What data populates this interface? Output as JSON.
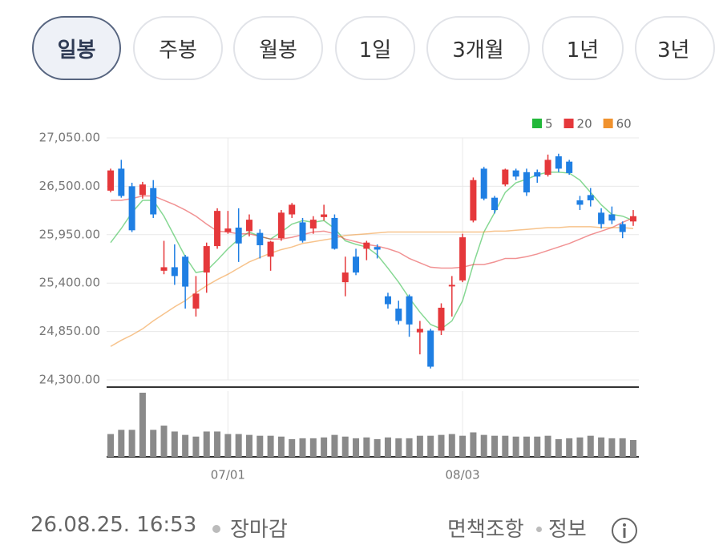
{
  "tabs": [
    "일봉",
    "주봉",
    "월봉",
    "1일",
    "3개월",
    "1년",
    "3년"
  ],
  "chart_data": {
    "type": "candlestick",
    "categories": [
      null,
      null,
      null,
      null,
      null,
      null,
      null,
      null,
      null,
      null,
      null,
      "07/01",
      null,
      null,
      null,
      null,
      null,
      null,
      null,
      null,
      null,
      null,
      null,
      null,
      null,
      null,
      null,
      null,
      null,
      null,
      null,
      null,
      null,
      "08/03",
      null,
      null,
      null,
      null,
      null,
      null,
      null,
      null,
      null,
      null,
      null,
      null,
      null,
      null,
      null,
      null
    ],
    "open": [
      26450,
      26700,
      26500,
      26400,
      26480,
      25540,
      25580,
      25700,
      25110,
      25520,
      25820,
      25980,
      26030,
      25990,
      25970,
      25700,
      25910,
      26180,
      26090,
      26020,
      26150,
      26140,
      25410,
      25700,
      25790,
      25810,
      25250,
      25110,
      25250,
      24840,
      24860,
      24860,
      25370,
      25430,
      26110,
      26700,
      26370,
      26520,
      26680,
      26660,
      26660,
      26630,
      26840,
      26780,
      26340,
      26400,
      26200,
      26180,
      26070,
      26100
    ],
    "high": [
      26700,
      26800,
      26540,
      26550,
      26570,
      25880,
      25840,
      25720,
      25480,
      25860,
      26250,
      26220,
      26250,
      26180,
      26010,
      25880,
      26230,
      26310,
      26140,
      26160,
      26290,
      26180,
      25700,
      25790,
      25880,
      25840,
      25290,
      25200,
      25270,
      24970,
      24880,
      25170,
      25480,
      25960,
      26600,
      26720,
      26390,
      26700,
      26700,
      26700,
      26690,
      26860,
      26870,
      26800,
      26390,
      26480,
      26250,
      26270,
      26100,
      26230
    ],
    "low": [
      26430,
      26370,
      25980,
      26360,
      26140,
      25500,
      25380,
      25110,
      25020,
      25290,
      25790,
      25960,
      25640,
      25930,
      25680,
      25540,
      25880,
      26140,
      25860,
      25960,
      26110,
      25780,
      25250,
      25490,
      25660,
      25680,
      25110,
      24930,
      24790,
      24590,
      24430,
      24810,
      25020,
      25410,
      26090,
      26340,
      26190,
      26500,
      26570,
      26390,
      26540,
      26610,
      26660,
      26630,
      26230,
      26270,
      26020,
      26070,
      25910,
      26050
    ],
    "close": [
      26680,
      26390,
      26000,
      26520,
      26180,
      25580,
      25480,
      25360,
      25280,
      25820,
      26220,
      26020,
      25850,
      26120,
      25830,
      25870,
      26200,
      26290,
      25880,
      26120,
      26180,
      25790,
      25520,
      25520,
      25860,
      25780,
      25160,
      24970,
      24930,
      24880,
      24450,
      25120,
      25380,
      25920,
      26570,
      26360,
      26230,
      26690,
      26610,
      26430,
      26610,
      26800,
      26700,
      26650,
      26290,
      26340,
      26070,
      26110,
      25980,
      26160
    ],
    "up_color": "#e5383b",
    "down_color": "#1f7fe3",
    "series": [
      {
        "name": "5",
        "color": "#22b83a",
        "values": [
          25860,
          26020,
          26200,
          26340,
          26340,
          26160,
          25930,
          25700,
          25520,
          25540,
          25660,
          25790,
          25900,
          25980,
          25930,
          25900,
          25980,
          26070,
          26110,
          26090,
          26110,
          26020,
          25880,
          25840,
          25810,
          25720,
          25570,
          25410,
          25230,
          25070,
          24930,
          24880,
          24970,
          25200,
          25610,
          25980,
          26200,
          26430,
          26540,
          26580,
          26630,
          26660,
          26660,
          26650,
          26570,
          26430,
          26290,
          26180,
          26160,
          26110
        ]
      },
      {
        "name": "20",
        "color": "#e5383b",
        "values": [
          26340,
          26340,
          26360,
          26390,
          26390,
          26340,
          26290,
          26230,
          26160,
          26070,
          25990,
          25980,
          25960,
          25960,
          25930,
          25900,
          25900,
          25920,
          25950,
          25980,
          25990,
          25960,
          25900,
          25870,
          25840,
          25820,
          25790,
          25750,
          25680,
          25630,
          25580,
          25570,
          25570,
          25580,
          25610,
          25610,
          25640,
          25680,
          25680,
          25700,
          25730,
          25770,
          25810,
          25850,
          25900,
          25950,
          25990,
          26030,
          26090,
          26140
        ]
      },
      {
        "name": "60",
        "color": "#f0922e",
        "values": [
          24680,
          24750,
          24810,
          24880,
          24970,
          25050,
          25130,
          25200,
          25290,
          25370,
          25440,
          25500,
          25570,
          25640,
          25690,
          25740,
          25780,
          25810,
          25850,
          25870,
          25890,
          25910,
          25940,
          25950,
          25960,
          25970,
          25980,
          25980,
          25980,
          25980,
          25980,
          25980,
          25980,
          25980,
          25980,
          25980,
          25990,
          25990,
          26000,
          26010,
          26020,
          26030,
          26030,
          26040,
          26040,
          26040,
          26030,
          26030,
          26030,
          26020
        ]
      }
    ],
    "volume": [
      27,
      32,
      32,
      76,
      32,
      37,
      30,
      26,
      24,
      30,
      30,
      27,
      27,
      26,
      25,
      25,
      24,
      21,
      22,
      22,
      23,
      26,
      24,
      22,
      23,
      21,
      23,
      22,
      22,
      25,
      25,
      26,
      27,
      25,
      29,
      26,
      25,
      25,
      24,
      24,
      24,
      25,
      21,
      22,
      23,
      25,
      23,
      22,
      22,
      20
    ],
    "volume_color": "#8a8a8a",
    "ylim": [
      24300,
      27050
    ],
    "yticks": [
      {
        "value": 27050,
        "label": "27,050.00"
      },
      {
        "value": 26500,
        "label": "26,500.00"
      },
      {
        "value": 25950,
        "label": "25,950.00"
      },
      {
        "value": 25400,
        "label": "25,400.00"
      },
      {
        "value": 24850,
        "label": "24,850.00"
      },
      {
        "value": 24300,
        "label": "24,300.00"
      }
    ],
    "grid": true,
    "legend": "top-right"
  },
  "footer": {
    "timestamp": "26.08.25. 16:53",
    "status": "장마감",
    "disclaimer": "면책조항",
    "info": "정보"
  }
}
